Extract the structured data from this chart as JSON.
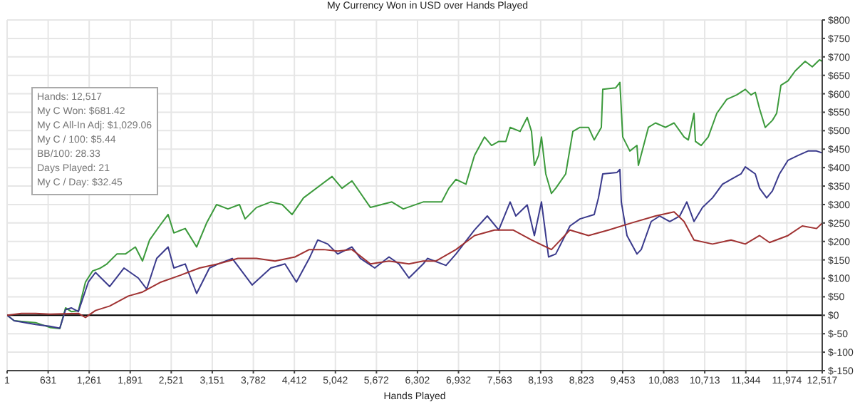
{
  "chart_data": {
    "type": "line",
    "title": "My Currency Won in USD over Hands Played",
    "xlabel": "Hands Played",
    "annotations": [
      "Hands: 12,517",
      "My C Won: $681.42",
      "My C All-In Adj: $1,029.06",
      "My C / 100: $5.44",
      "BB/100: 28.33",
      "Days Played: 21",
      "My C / Day: $32.45"
    ],
    "xlim": [
      1,
      12517
    ],
    "xticks": [
      1,
      631,
      {
        "value": 1261,
        "label": "1,261"
      },
      {
        "value": 1891,
        "label": "1,891"
      },
      {
        "value": 2521,
        "label": "2,521"
      },
      {
        "value": 3151,
        "label": "3,151"
      },
      {
        "value": 3782,
        "label": "3,782"
      },
      {
        "value": 4412,
        "label": "4,412"
      },
      {
        "value": 5042,
        "label": "5,042"
      },
      {
        "value": 5672,
        "label": "5,672"
      },
      {
        "value": 6302,
        "label": "6,302"
      },
      {
        "value": 6932,
        "label": "6,932"
      },
      {
        "value": 7563,
        "label": "7,563"
      },
      {
        "value": 8193,
        "label": "8,193"
      },
      {
        "value": 8823,
        "label": "8,823"
      },
      {
        "value": 9453,
        "label": "9,453"
      },
      {
        "value": 10083,
        "label": "10,083"
      },
      {
        "value": 10713,
        "label": "10,713"
      },
      {
        "value": 11344,
        "label": "11,344"
      },
      {
        "value": 11974,
        "label": "11,974"
      },
      {
        "value": 12517,
        "label": "12,517"
      }
    ],
    "ylim": [
      -150,
      800
    ],
    "yticks": [
      {
        "value": -150,
        "label": "$-150"
      },
      {
        "value": -100,
        "label": "$-100"
      },
      {
        "value": -50,
        "label": "$-50"
      },
      {
        "value": 0,
        "label": "$0"
      },
      {
        "value": 50,
        "label": "$50"
      },
      {
        "value": 100,
        "label": "$100"
      },
      {
        "value": 150,
        "label": "$150"
      },
      {
        "value": 200,
        "label": "$200"
      },
      {
        "value": 250,
        "label": "$250"
      },
      {
        "value": 300,
        "label": "$300"
      },
      {
        "value": 350,
        "label": "$350"
      },
      {
        "value": 400,
        "label": "$400"
      },
      {
        "value": 450,
        "label": "$450"
      },
      {
        "value": 500,
        "label": "$500"
      },
      {
        "value": 550,
        "label": "$550"
      },
      {
        "value": 600,
        "label": "$600"
      },
      {
        "value": 650,
        "label": "$650"
      },
      {
        "value": 700,
        "label": "$700"
      },
      {
        "value": 750,
        "label": "$750"
      },
      {
        "value": 800,
        "label": "$800"
      }
    ],
    "grid": true,
    "marker": "none",
    "line_style": "solid",
    "ref_lines": [
      {
        "axis": "y",
        "value": 0,
        "color": "#000000"
      }
    ],
    "series": [
      {
        "color": "#3c9a3c",
        "x": [
          1,
          110,
          439,
          657,
          810,
          898,
          986,
          1095,
          1204,
          1314,
          1423,
          1533,
          1686,
          1817,
          1970,
          2080,
          2189,
          2342,
          2473,
          2561,
          2736,
          2911,
          3064,
          3217,
          3392,
          3568,
          3655,
          3830,
          4049,
          4224,
          4377,
          4552,
          4990,
          5143,
          5296,
          5580,
          5909,
          6084,
          6390,
          6674,
          6784,
          6893,
          7046,
          7178,
          7331,
          7440,
          7550,
          7659,
          7725,
          7878,
          7987,
          8053,
          8097,
          8162,
          8206,
          8272,
          8359,
          8425,
          8578,
          8688,
          8797,
          8928,
          9016,
          9125,
          9147,
          9344,
          9410,
          9454,
          9563,
          9672,
          9694,
          9848,
          9957,
          10110,
          10242,
          10395,
          10461,
          10548,
          10570,
          10658,
          10767,
          10898,
          11051,
          11204,
          11336,
          11423,
          11489,
          11555,
          11642,
          11752,
          11817,
          11883,
          11992,
          12102,
          12255,
          12364,
          12474,
          12517
        ],
        "values": [
          0,
          -15,
          -20,
          -33,
          -36,
          20,
          10,
          12,
          90,
          120,
          127,
          139,
          166,
          166,
          185,
          147,
          204,
          242,
          273,
          223,
          235,
          185,
          250,
          300,
          288,
          300,
          261,
          292,
          307,
          300,
          273,
          318,
          376,
          344,
          364,
          292,
          307,
          288,
          307,
          307,
          344,
          368,
          355,
          433,
          483,
          460,
          471,
          471,
          509,
          498,
          536,
          498,
          406,
          433,
          483,
          383,
          330,
          344,
          383,
          498,
          509,
          509,
          475,
          509,
          612,
          616,
          631,
          483,
          445,
          460,
          406,
          509,
          521,
          509,
          521,
          483,
          475,
          547,
          471,
          460,
          483,
          547,
          585,
          597,
          612,
          597,
          604,
          559,
          509,
          528,
          547,
          623,
          635,
          662,
          688,
          673,
          692,
          688
        ]
      },
      {
        "color": "#3a3a8c",
        "x": [
          1,
          110,
          439,
          657,
          810,
          898,
          986,
          1095,
          1248,
          1358,
          1576,
          1795,
          2014,
          2145,
          2298,
          2473,
          2561,
          2736,
          2911,
          3108,
          3239,
          3458,
          3764,
          4049,
          4268,
          4443,
          4640,
          4771,
          4924,
          5077,
          5296,
          5427,
          5646,
          5865,
          6018,
          6171,
          6390,
          6456,
          6740,
          6893,
          7178,
          7374,
          7550,
          7725,
          7812,
          7987,
          8097,
          8206,
          8315,
          8425,
          8644,
          8797,
          9016,
          9081,
          9147,
          9366,
          9410,
          9432,
          9519,
          9672,
          9738,
          9891,
          10022,
          10176,
          10329,
          10438,
          10548,
          10679,
          10832,
          10986,
          11117,
          11270,
          11336,
          11489,
          11555,
          11664,
          11752,
          11861,
          11992,
          12145,
          12299,
          12430,
          12517
        ],
        "values": [
          0,
          -15,
          -25,
          -30,
          -35,
          15,
          20,
          10,
          90,
          116,
          78,
          128,
          101,
          71,
          154,
          185,
          128,
          139,
          59,
          128,
          139,
          154,
          82,
          128,
          139,
          90,
          154,
          204,
          193,
          166,
          185,
          154,
          128,
          158,
          139,
          101,
          139,
          154,
          135,
          166,
          231,
          269,
          231,
          307,
          269,
          299,
          216,
          307,
          158,
          166,
          242,
          261,
          273,
          318,
          383,
          387,
          395,
          307,
          216,
          166,
          178,
          254,
          269,
          254,
          269,
          307,
          254,
          292,
          318,
          355,
          368,
          383,
          402,
          383,
          344,
          318,
          337,
          383,
          420,
          433,
          445,
          445,
          440
        ]
      },
      {
        "color": "#a03232",
        "x": [
          1,
          220,
          439,
          657,
          1095,
          1204,
          1358,
          1576,
          1861,
          2080,
          2364,
          2670,
          2955,
          3239,
          3545,
          3830,
          4115,
          4421,
          4640,
          4859,
          5077,
          5296,
          5580,
          5865,
          6171,
          6390,
          6587,
          6893,
          7178,
          7484,
          7769,
          8053,
          8359,
          8644,
          8928,
          9235,
          9585,
          9957,
          10242,
          10395,
          10548,
          10832,
          11117,
          11336,
          11555,
          11708,
          11992,
          12211,
          12430,
          12517
        ],
        "values": [
          0,
          5,
          5,
          3,
          5,
          -6,
          13,
          25,
          52,
          63,
          90,
          109,
          128,
          139,
          154,
          154,
          147,
          158,
          178,
          178,
          174,
          178,
          139,
          147,
          139,
          147,
          147,
          178,
          216,
          231,
          231,
          204,
          178,
          231,
          216,
          231,
          250,
          269,
          280,
          254,
          204,
          193,
          204,
          193,
          216,
          197,
          216,
          242,
          235,
          250
        ]
      }
    ]
  }
}
